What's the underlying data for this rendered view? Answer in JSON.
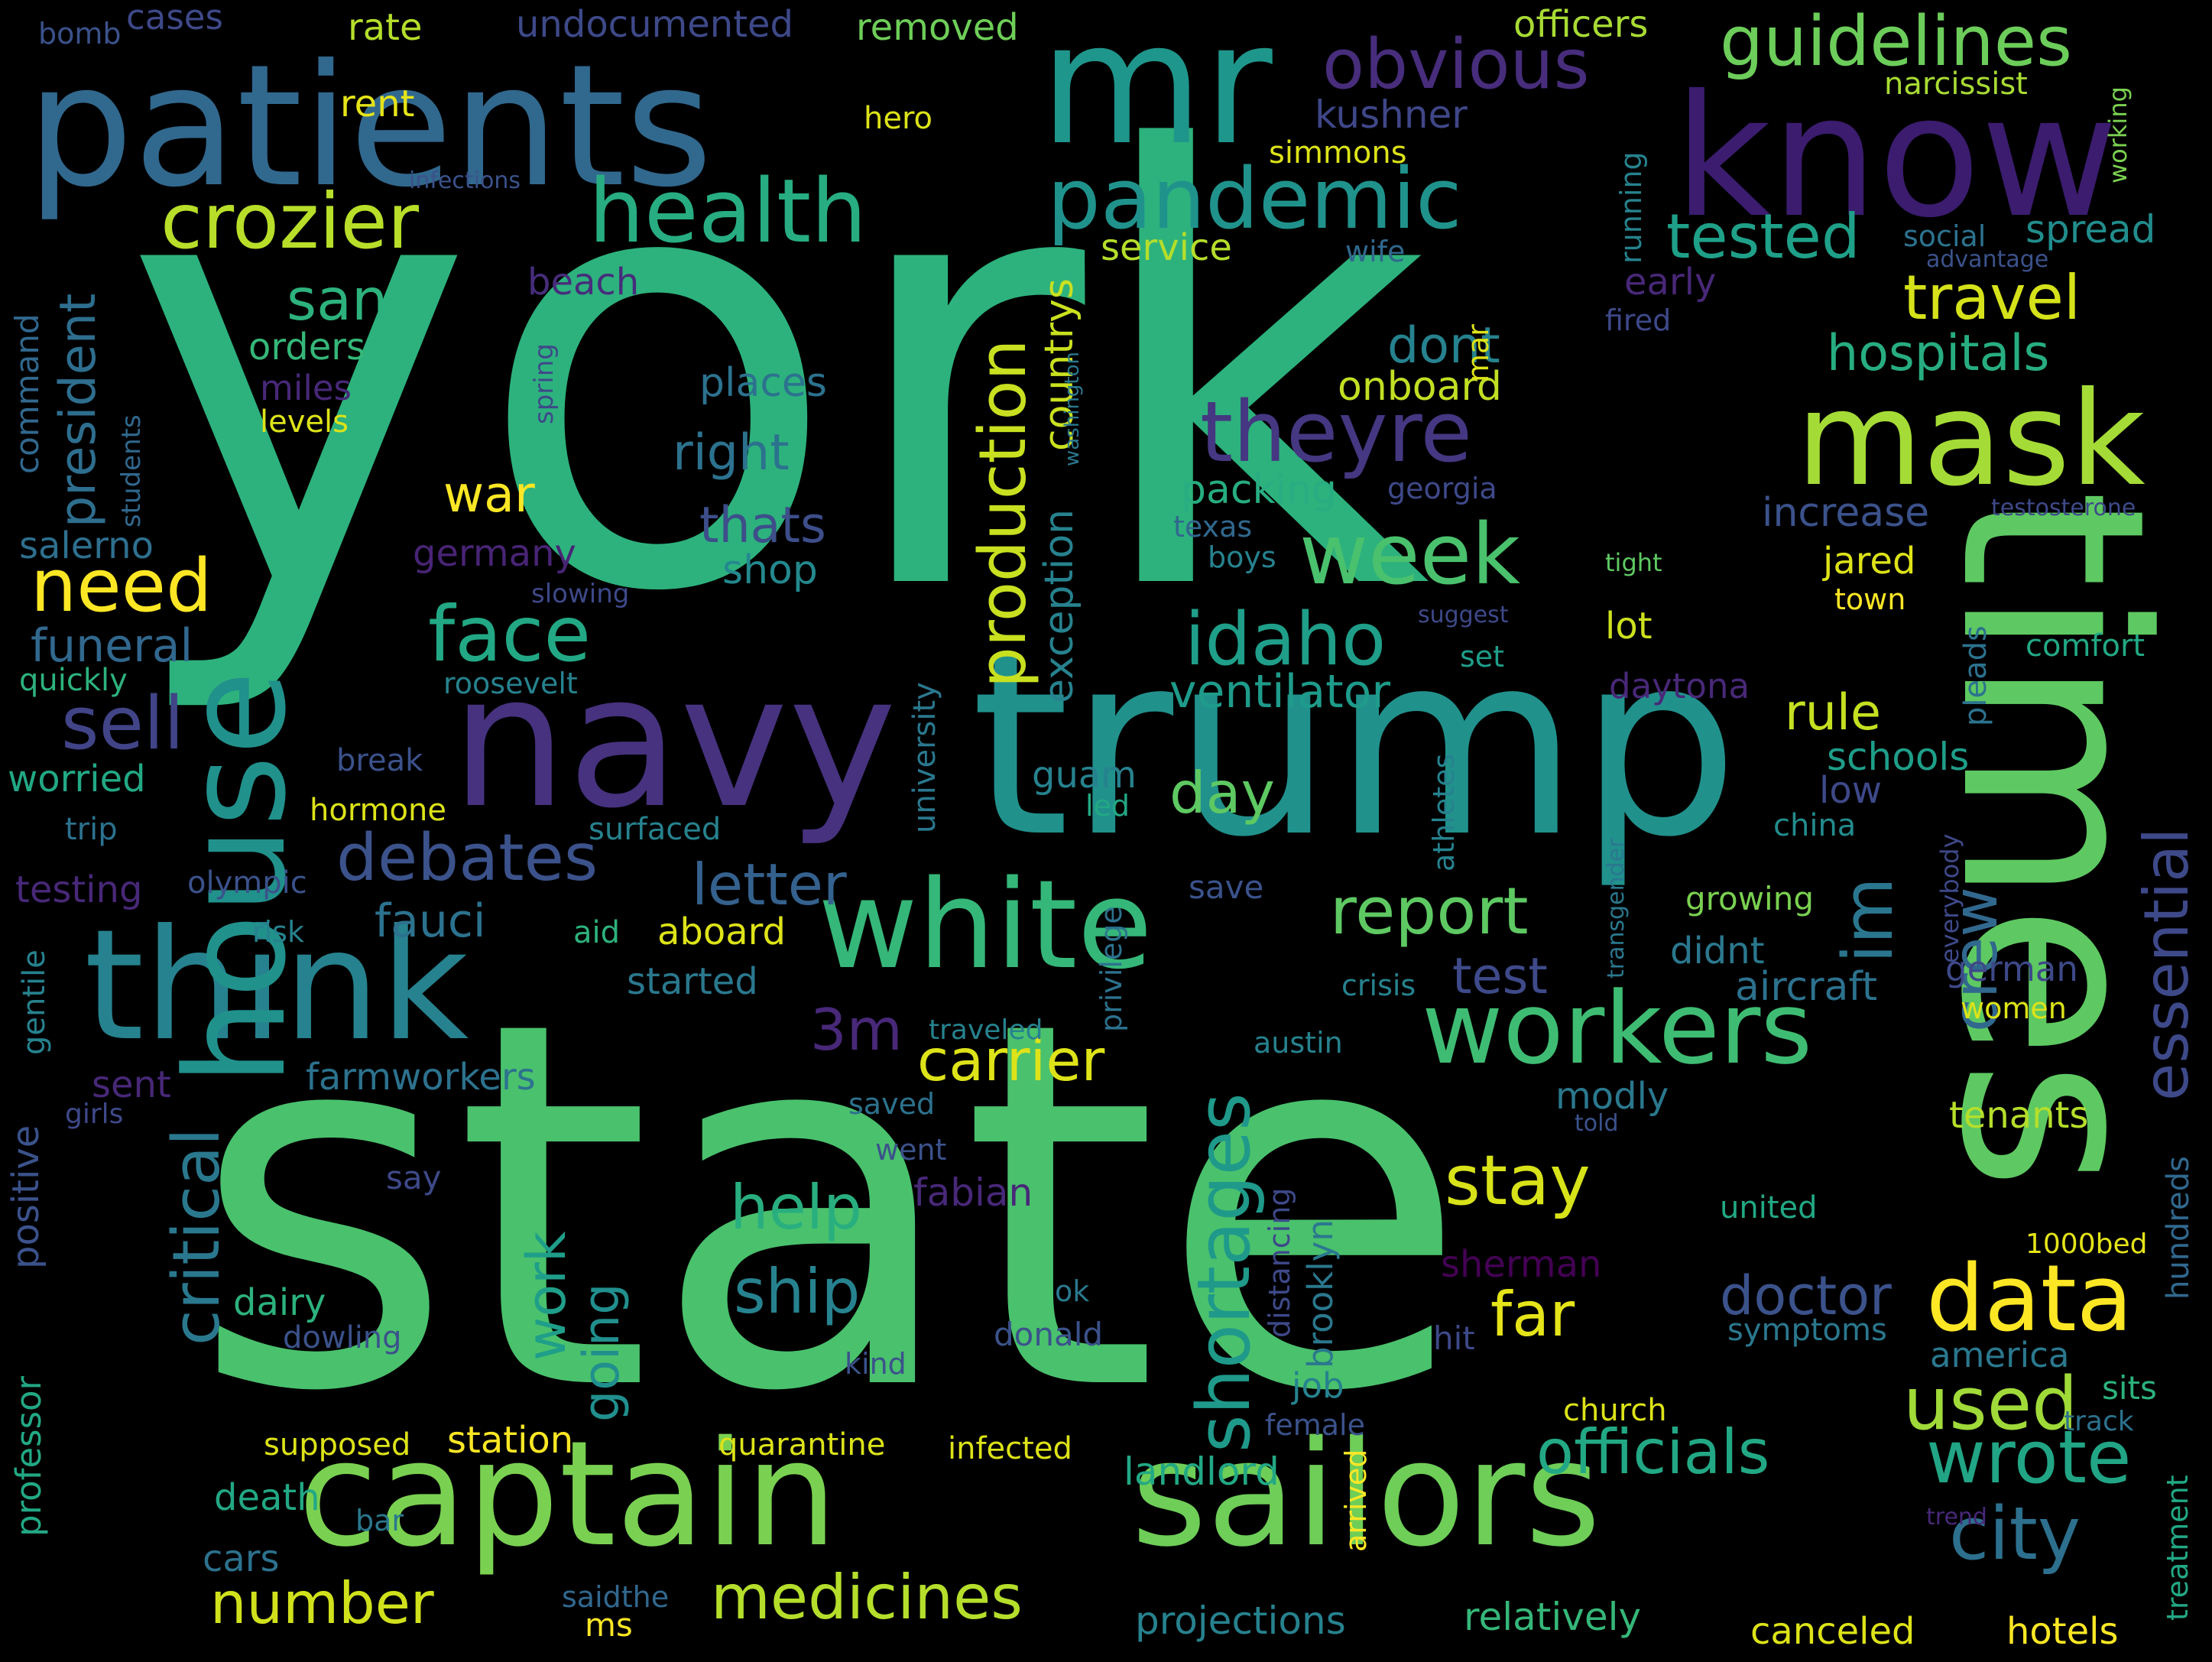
{
  "palette": {
    "background": "#000000",
    "viridis": [
      "#440154",
      "#482878",
      "#3e4989",
      "#31688e",
      "#26828e",
      "#1f9e89",
      "#35b779",
      "#6ece58",
      "#b5de2b",
      "#fde725"
    ]
  },
  "words": [
    {
      "text": "york",
      "color": "#2db27d"
    },
    {
      "text": "state",
      "color": "#4ac16d"
    },
    {
      "text": "trump",
      "color": "#21918c"
    },
    {
      "text": "times",
      "color": "#5ec962"
    },
    {
      "text": "patients",
      "color": "#31688e"
    },
    {
      "text": "mr",
      "color": "#1f968b"
    },
    {
      "text": "know",
      "color": "#3b1c6e"
    },
    {
      "text": "navy",
      "color": "#46327e"
    },
    {
      "text": "captain",
      "color": "#7ad151"
    },
    {
      "text": "sailors",
      "color": "#6ece58"
    },
    {
      "text": "think",
      "color": "#26828e"
    },
    {
      "text": "white",
      "color": "#35b779"
    },
    {
      "text": "house",
      "color": "#21918c"
    },
    {
      "text": "mask",
      "color": "#a5db36"
    },
    {
      "text": "workers",
      "color": "#3fbc73"
    },
    {
      "text": "health",
      "color": "#27ad81"
    },
    {
      "text": "crozier",
      "color": "#b8de29"
    },
    {
      "text": "pandemic",
      "color": "#20928c"
    },
    {
      "text": "guidelines",
      "color": "#6ccd5a"
    },
    {
      "text": "obvious",
      "color": "#472d7b"
    },
    {
      "text": "theyre",
      "color": "#453781"
    },
    {
      "text": "week",
      "color": "#4ac16d"
    },
    {
      "text": "idaho",
      "color": "#1f9e89"
    },
    {
      "text": "face",
      "color": "#22a884"
    },
    {
      "text": "sell",
      "color": "#414487"
    },
    {
      "text": "need",
      "color": "#fde725"
    },
    {
      "text": "debates",
      "color": "#3b528b"
    },
    {
      "text": "fauci",
      "color": "#2c728e"
    },
    {
      "text": "critical",
      "color": "#2a788e"
    },
    {
      "text": "shortages",
      "color": "#1f998a"
    },
    {
      "text": "production",
      "color": "#c8e020"
    },
    {
      "text": "essential",
      "color": "#3e4989"
    },
    {
      "text": "crew",
      "color": "#31688e"
    },
    {
      "text": "im",
      "color": "#2a768e"
    },
    {
      "text": "data",
      "color": "#fde725"
    },
    {
      "text": "city",
      "color": "#2d708e"
    },
    {
      "text": "wrote",
      "color": "#21a585"
    },
    {
      "text": "used",
      "color": "#a0da39"
    },
    {
      "text": "officials",
      "color": "#22a884"
    },
    {
      "text": "medicines",
      "color": "#b5de2b"
    },
    {
      "text": "number",
      "color": "#d0e11c"
    },
    {
      "text": "stay",
      "color": "#d8e219"
    },
    {
      "text": "far",
      "color": "#e5e419"
    },
    {
      "text": "help",
      "color": "#29af7f"
    },
    {
      "text": "ship",
      "color": "#26828e"
    },
    {
      "text": "carrier",
      "color": "#dde318"
    },
    {
      "text": "report",
      "color": "#5ec962"
    },
    {
      "text": "travel",
      "color": "#d5e21a"
    },
    {
      "text": "tested",
      "color": "#1fa088"
    },
    {
      "text": "hospitals",
      "color": "#27ad81"
    },
    {
      "text": "ventilator",
      "color": "#1e9b8a"
    },
    {
      "text": "letter",
      "color": "#34618d"
    },
    {
      "text": "day",
      "color": "#5ec962"
    },
    {
      "text": "test",
      "color": "#3e4a89"
    },
    {
      "text": "doctor",
      "color": "#3b528b"
    },
    {
      "text": "work",
      "color": "#1f9e89"
    },
    {
      "text": "going",
      "color": "#218f8d"
    },
    {
      "text": "rule",
      "color": "#c5e021"
    },
    {
      "text": "dont",
      "color": "#26828e"
    },
    {
      "text": "san",
      "color": "#2db27d"
    },
    {
      "text": "3m",
      "color": "#482878"
    },
    {
      "text": "war",
      "color": "#fde725"
    },
    {
      "text": "thats",
      "color": "#3d4e8a"
    },
    {
      "text": "right",
      "color": "#2c728e"
    },
    {
      "text": "president",
      "color": "#2e6e8e"
    },
    {
      "text": "funeral",
      "color": "#31688e"
    },
    {
      "text": "salerno",
      "color": "#2e6f8e"
    },
    {
      "text": "germany",
      "color": "#482475"
    },
    {
      "text": "places",
      "color": "#2c728e"
    },
    {
      "text": "shop",
      "color": "#23898e"
    },
    {
      "text": "packing",
      "color": "#27ad81"
    },
    {
      "text": "onboard",
      "color": "#c2df23"
    },
    {
      "text": "countrys",
      "color": "#cae11f"
    },
    {
      "text": "exception",
      "color": "#26828e"
    },
    {
      "text": "university",
      "color": "#2a788e"
    },
    {
      "text": "service",
      "color": "#b5de2b"
    },
    {
      "text": "simmons",
      "color": "#dde318"
    },
    {
      "text": "kushner",
      "color": "#3f4788"
    },
    {
      "text": "undocumented",
      "color": "#3e4989"
    },
    {
      "text": "removed",
      "color": "#6ece58"
    },
    {
      "text": "officers",
      "color": "#a8db34"
    },
    {
      "text": "narcissist",
      "color": "#a8db34"
    },
    {
      "text": "working",
      "color": "#7ad151"
    },
    {
      "text": "social",
      "color": "#2c728e"
    },
    {
      "text": "spread",
      "color": "#228d8d"
    },
    {
      "text": "advantage",
      "color": "#3b528b"
    },
    {
      "text": "early",
      "color": "#482878"
    },
    {
      "text": "fired",
      "color": "#3e4989"
    },
    {
      "text": "running",
      "color": "#26828e"
    },
    {
      "text": "wife",
      "color": "#31688e"
    },
    {
      "text": "mar",
      "color": "#dde318"
    },
    {
      "text": "georgia",
      "color": "#3e4989"
    },
    {
      "text": "increase",
      "color": "#3b528b"
    },
    {
      "text": "testosterone",
      "color": "#3e4a89"
    },
    {
      "text": "jared",
      "color": "#dde318"
    },
    {
      "text": "town",
      "color": "#fde725"
    },
    {
      "text": "pleads",
      "color": "#2c728e"
    },
    {
      "text": "tight",
      "color": "#5ec962"
    },
    {
      "text": "lot",
      "color": "#cde11d"
    },
    {
      "text": "suggest",
      "color": "#3e4989"
    },
    {
      "text": "set",
      "color": "#1f9e89"
    },
    {
      "text": "daytona",
      "color": "#482878"
    },
    {
      "text": "comfort",
      "color": "#22a884"
    },
    {
      "text": "texas",
      "color": "#31688e"
    },
    {
      "text": "boys",
      "color": "#26828e"
    },
    {
      "text": "schools",
      "color": "#1f9e89"
    },
    {
      "text": "low",
      "color": "#3e4989"
    },
    {
      "text": "china",
      "color": "#228c8d"
    },
    {
      "text": "athletes",
      "color": "#26828e"
    },
    {
      "text": "everybody",
      "color": "#3e4989"
    },
    {
      "text": "transgender",
      "color": "#2a788e"
    },
    {
      "text": "growing",
      "color": "#7ad151"
    },
    {
      "text": "didnt",
      "color": "#2a788e"
    },
    {
      "text": "aircraft",
      "color": "#2c728e"
    },
    {
      "text": "german",
      "color": "#3e4989"
    },
    {
      "text": "women",
      "color": "#dde318"
    },
    {
      "text": "crisis",
      "color": "#26828e"
    },
    {
      "text": "austin",
      "color": "#26828e"
    },
    {
      "text": "modly",
      "color": "#2a788e"
    },
    {
      "text": "told",
      "color": "#3b528b"
    },
    {
      "text": "tenants",
      "color": "#b5de2b"
    },
    {
      "text": "hundreds",
      "color": "#31688e"
    },
    {
      "text": "united",
      "color": "#22a884"
    },
    {
      "text": "1000bed",
      "color": "#e5e419"
    },
    {
      "text": "symptoms",
      "color": "#2a788e"
    },
    {
      "text": "america",
      "color": "#2a788e"
    },
    {
      "text": "sits",
      "color": "#2db27d"
    },
    {
      "text": "track",
      "color": "#2c728e"
    },
    {
      "text": "treatment",
      "color": "#22a884"
    },
    {
      "text": "trend",
      "color": "#482878"
    },
    {
      "text": "church",
      "color": "#dde318"
    },
    {
      "text": "female",
      "color": "#3b528b"
    },
    {
      "text": "arrived",
      "color": "#fde725"
    },
    {
      "text": "hotels",
      "color": "#fde725"
    },
    {
      "text": "canceled",
      "color": "#dde318"
    },
    {
      "text": "relatively",
      "color": "#35b779"
    },
    {
      "text": "projections",
      "color": "#26828e"
    },
    {
      "text": "landlord",
      "color": "#22a884"
    },
    {
      "text": "hit",
      "color": "#3e4989"
    },
    {
      "text": "brooklyn",
      "color": "#2a788e"
    },
    {
      "text": "distancing",
      "color": "#3e4989"
    },
    {
      "text": "job",
      "color": "#26828e"
    },
    {
      "text": "ok",
      "color": "#2a788e"
    },
    {
      "text": "donald",
      "color": "#3b528b"
    },
    {
      "text": "sherman",
      "color": "#440154"
    },
    {
      "text": "infected",
      "color": "#dde318"
    },
    {
      "text": "quarantine",
      "color": "#dde318"
    },
    {
      "text": "kind",
      "color": "#3b528b"
    },
    {
      "text": "save",
      "color": "#3b528b"
    },
    {
      "text": "privilege",
      "color": "#2c728e"
    },
    {
      "text": "led",
      "color": "#22a884"
    },
    {
      "text": "guam",
      "color": "#26828e"
    },
    {
      "text": "saved",
      "color": "#2c728e"
    },
    {
      "text": "went",
      "color": "#3b528b"
    },
    {
      "text": "fabian",
      "color": "#482878"
    },
    {
      "text": "traveled",
      "color": "#26828e"
    },
    {
      "text": "station",
      "color": "#fde725"
    },
    {
      "text": "supposed",
      "color": "#dde318"
    },
    {
      "text": "death",
      "color": "#22a884"
    },
    {
      "text": "bar",
      "color": "#2a788e"
    },
    {
      "text": "cars",
      "color": "#2c728e"
    },
    {
      "text": "saidthe",
      "color": "#31688e"
    },
    {
      "text": "ms",
      "color": "#fde725"
    },
    {
      "text": "dairy",
      "color": "#2db27d"
    },
    {
      "text": "dowling",
      "color": "#3b528b"
    },
    {
      "text": "say",
      "color": "#3e4989"
    },
    {
      "text": "farmworkers",
      "color": "#2c728e"
    },
    {
      "text": "sent",
      "color": "#482878"
    },
    {
      "text": "girls",
      "color": "#3e4989"
    },
    {
      "text": "positive",
      "color": "#3b528b"
    },
    {
      "text": "gentile",
      "color": "#26828e"
    },
    {
      "text": "professor",
      "color": "#22a884"
    },
    {
      "text": "started",
      "color": "#2a788e"
    },
    {
      "text": "aboard",
      "color": "#dde318"
    },
    {
      "text": "aid",
      "color": "#2db27d"
    },
    {
      "text": "risk",
      "color": "#26828e"
    },
    {
      "text": "testing",
      "color": "#482878"
    },
    {
      "text": "olympic",
      "color": "#3b528b"
    },
    {
      "text": "surfaced",
      "color": "#26828e"
    },
    {
      "text": "hormone",
      "color": "#dde318"
    },
    {
      "text": "trip",
      "color": "#2c728e"
    },
    {
      "text": "break",
      "color": "#3b528b"
    },
    {
      "text": "worried",
      "color": "#22a884"
    },
    {
      "text": "quickly",
      "color": "#2db27d"
    },
    {
      "text": "roosevelt",
      "color": "#26828e"
    },
    {
      "text": "slowing",
      "color": "#3e4989"
    },
    {
      "text": "levels",
      "color": "#dde318"
    },
    {
      "text": "miles",
      "color": "#482878"
    },
    {
      "text": "orders",
      "color": "#35b779"
    },
    {
      "text": "spring",
      "color": "#3e4989"
    },
    {
      "text": "washington",
      "color": "#2a788e"
    },
    {
      "text": "students",
      "color": "#31688e"
    },
    {
      "text": "command",
      "color": "#31688e"
    },
    {
      "text": "beach",
      "color": "#472d7b"
    },
    {
      "text": "infections",
      "color": "#3b528b"
    },
    {
      "text": "rent",
      "color": "#e5e419"
    },
    {
      "text": "rate",
      "color": "#b5de2b"
    },
    {
      "text": "hero",
      "color": "#dde318"
    },
    {
      "text": "bomb",
      "color": "#3b528b"
    },
    {
      "text": "cases",
      "color": "#3e4989"
    }
  ]
}
